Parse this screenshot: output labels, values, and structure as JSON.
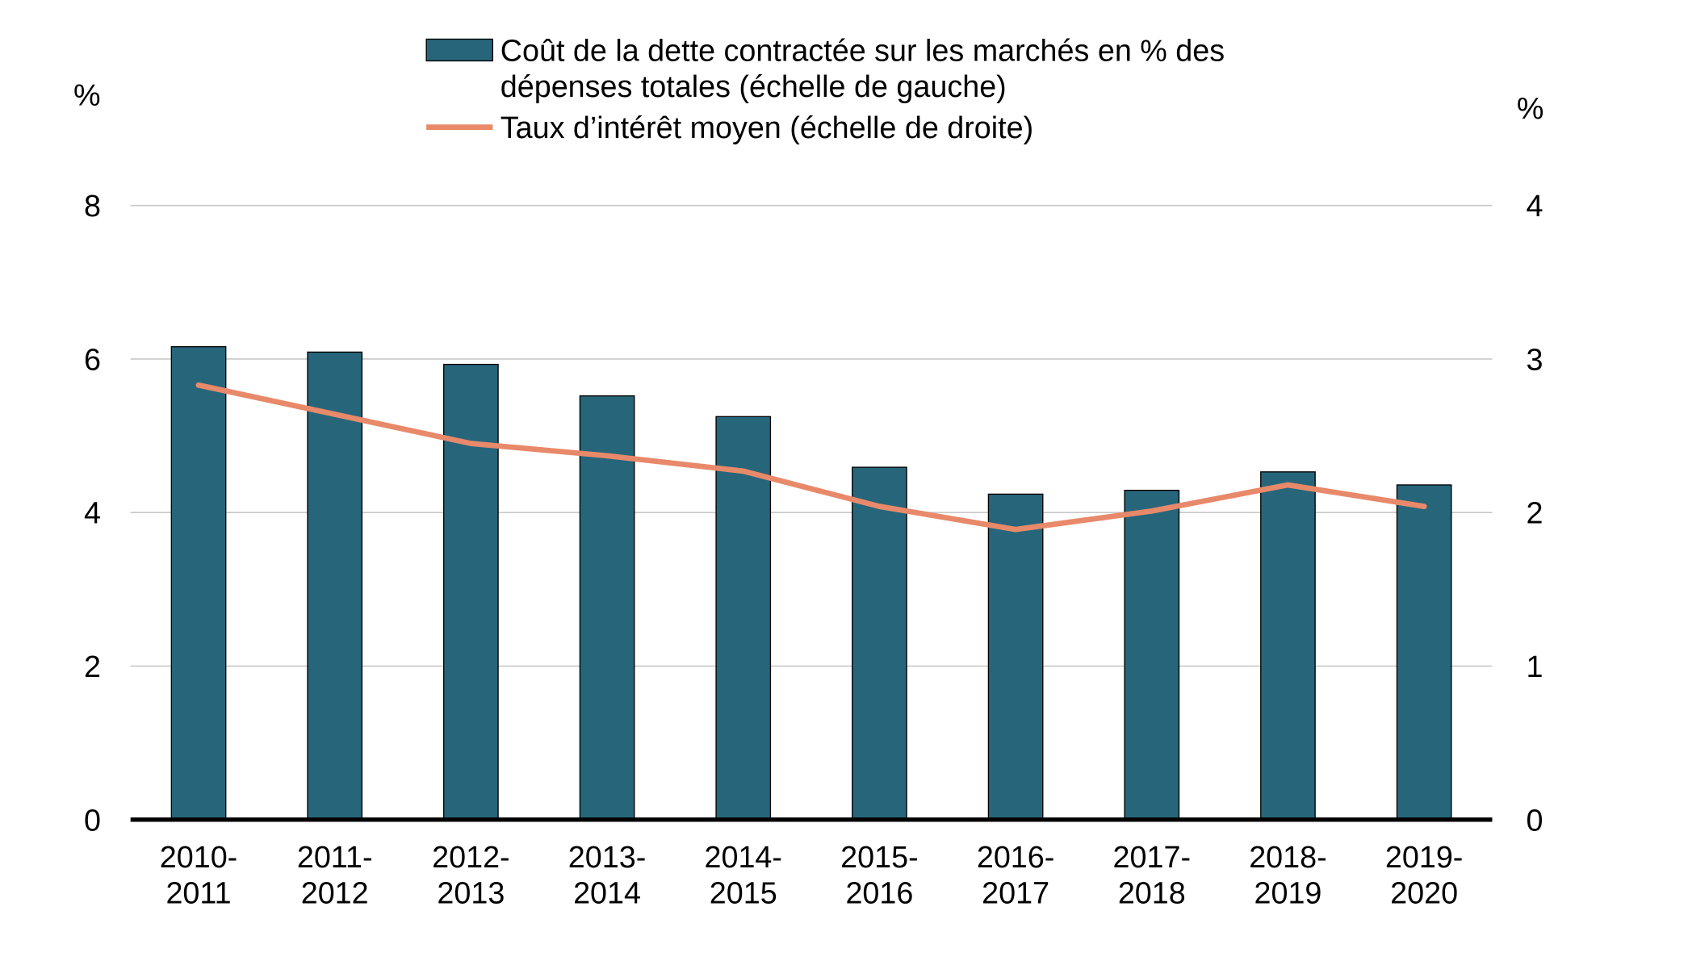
{
  "chart_data": {
    "type": "bar",
    "categories": [
      "2010-2011",
      "2011-2012",
      "2012-2013",
      "2013-2014",
      "2014-2015",
      "2015-2016",
      "2016-2017",
      "2017-2018",
      "2018-2019",
      "2019-2020"
    ],
    "series": [
      {
        "name": "Coût de la dette contractée sur les marchés en % des dépenses totales (échelle de gauche)",
        "type": "bar",
        "axis": "left",
        "color": "#27667a",
        "values": [
          6.16,
          6.09,
          5.93,
          5.52,
          5.25,
          4.59,
          4.24,
          4.29,
          4.53,
          4.36
        ]
      },
      {
        "name": "Taux d’intérêt moyen (échelle de droite)",
        "type": "line",
        "axis": "right",
        "color": "#e8896a",
        "values": [
          2.83,
          2.64,
          2.45,
          2.37,
          2.27,
          2.04,
          1.89,
          2.01,
          2.18,
          2.04
        ]
      }
    ],
    "ylabel_left": "%",
    "ylabel_right": "%",
    "ylim_left": [
      0,
      8
    ],
    "ylim_right": [
      0,
      4
    ],
    "yticks_left": [
      0,
      2,
      4,
      6,
      8
    ],
    "yticks_right": [
      0,
      1,
      2,
      3,
      4
    ],
    "grid": true,
    "legend_position": "top"
  }
}
